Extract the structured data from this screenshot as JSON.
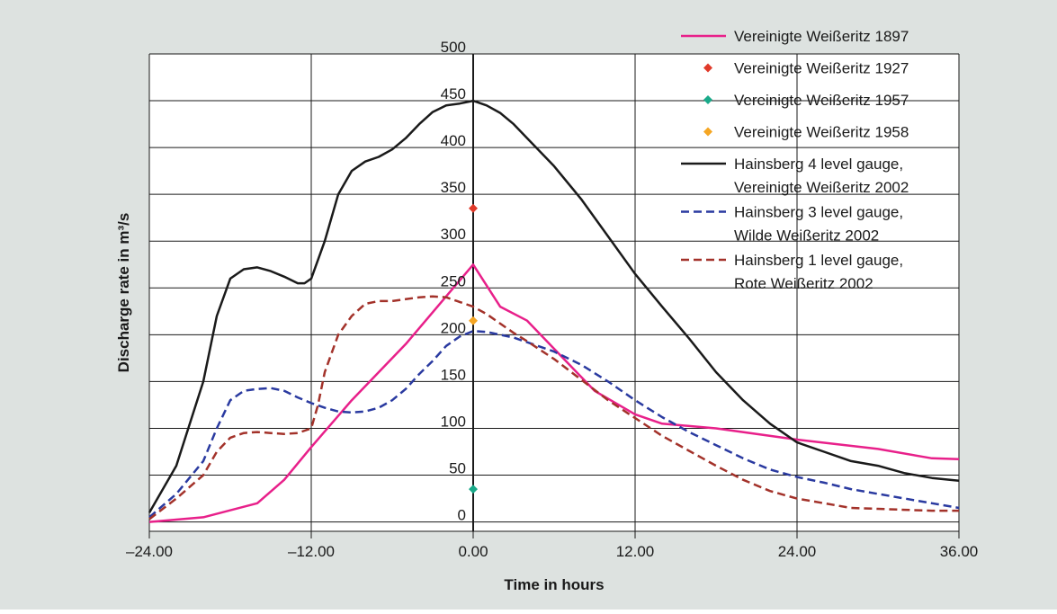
{
  "colors": {
    "background": "#dde2e0",
    "plot_area": "#ffffff",
    "grid": "#1a1a1a"
  },
  "chart_data": {
    "type": "line",
    "title": "",
    "xlabel": "Time in hours",
    "ylabel": "Discharge rate in m³/s",
    "xlim": [
      -24,
      36
    ],
    "ylim": [
      -10,
      500
    ],
    "x_ticks": [
      -24,
      -12,
      0,
      12,
      24,
      36
    ],
    "x_tick_labels": [
      "–24.00",
      "–12.00",
      "0.00",
      "12.00",
      "24.00",
      "36.00"
    ],
    "y_ticks": [
      0,
      50,
      100,
      150,
      200,
      250,
      300,
      350,
      400,
      450,
      500
    ],
    "y_tick_labels": [
      "0",
      "50",
      "100",
      "150",
      "200",
      "250",
      "300",
      "350",
      "400",
      "450",
      "500"
    ],
    "grid": true,
    "legend_position": "top-right",
    "series": [
      {
        "name": "Vereinigte Weißeritz 1897",
        "style": "line",
        "color": "#e8208a",
        "dash": "solid",
        "points": [
          [
            -24,
            0
          ],
          [
            -20,
            5
          ],
          [
            -16,
            20
          ],
          [
            -14,
            45
          ],
          [
            -12,
            80
          ],
          [
            -9,
            130
          ],
          [
            -5,
            190
          ],
          [
            0,
            275
          ],
          [
            2,
            230
          ],
          [
            4,
            215
          ],
          [
            6,
            185
          ],
          [
            9,
            140
          ],
          [
            12,
            115
          ],
          [
            14,
            105
          ],
          [
            18,
            100
          ],
          [
            24,
            88
          ],
          [
            30,
            78
          ],
          [
            34,
            68
          ],
          [
            36,
            67
          ]
        ]
      },
      {
        "name": "Vereinigte Weißeritz 1927",
        "style": "point",
        "color": "#e03a2a",
        "points": [
          [
            0,
            335
          ]
        ]
      },
      {
        "name": "Vereinigte Weißeritz 1957",
        "style": "point",
        "color": "#1aaa8a",
        "points": [
          [
            0,
            35
          ]
        ]
      },
      {
        "name": "Vereinigte Weißeritz 1958",
        "style": "point",
        "color": "#f5a623",
        "points": [
          [
            0,
            215
          ]
        ]
      },
      {
        "name": "Hainsberg 4 level gauge,\nVereinigte Weißeritz 2002",
        "style": "line",
        "color": "#1a1a1a",
        "dash": "solid",
        "points": [
          [
            -24,
            10
          ],
          [
            -22,
            60
          ],
          [
            -20,
            150
          ],
          [
            -19,
            220
          ],
          [
            -18,
            260
          ],
          [
            -17,
            270
          ],
          [
            -16,
            272
          ],
          [
            -15,
            268
          ],
          [
            -14,
            262
          ],
          [
            -13,
            255
          ],
          [
            -12.5,
            255
          ],
          [
            -12,
            260
          ],
          [
            -11,
            300
          ],
          [
            -10,
            350
          ],
          [
            -9,
            375
          ],
          [
            -8,
            385
          ],
          [
            -7,
            390
          ],
          [
            -6,
            398
          ],
          [
            -5,
            410
          ],
          [
            -4,
            425
          ],
          [
            -3,
            438
          ],
          [
            -2,
            445
          ],
          [
            -1,
            447
          ],
          [
            0,
            450
          ],
          [
            1,
            445
          ],
          [
            2,
            437
          ],
          [
            3,
            425
          ],
          [
            4,
            410
          ],
          [
            6,
            380
          ],
          [
            8,
            345
          ],
          [
            10,
            305
          ],
          [
            12,
            265
          ],
          [
            14,
            230
          ],
          [
            16,
            196
          ],
          [
            18,
            160
          ],
          [
            20,
            130
          ],
          [
            22,
            105
          ],
          [
            24,
            85
          ],
          [
            26,
            75
          ],
          [
            28,
            65
          ],
          [
            30,
            60
          ],
          [
            32,
            52
          ],
          [
            34,
            47
          ],
          [
            36,
            44
          ]
        ]
      },
      {
        "name": "Hainsberg 3 level gauge,\nWilde Weißeritz 2002",
        "style": "line",
        "color": "#2a3aa0",
        "dash": "dashed",
        "points": [
          [
            -24,
            5
          ],
          [
            -22,
            30
          ],
          [
            -20,
            65
          ],
          [
            -19,
            100
          ],
          [
            -18,
            130
          ],
          [
            -17,
            140
          ],
          [
            -16,
            142
          ],
          [
            -15,
            143
          ],
          [
            -14,
            140
          ],
          [
            -13,
            133
          ],
          [
            -12,
            127
          ],
          [
            -11,
            122
          ],
          [
            -10,
            118
          ],
          [
            -9,
            117
          ],
          [
            -8,
            118
          ],
          [
            -7,
            122
          ],
          [
            -6,
            130
          ],
          [
            -5,
            142
          ],
          [
            -4,
            158
          ],
          [
            -3,
            172
          ],
          [
            -2,
            188
          ],
          [
            -1,
            198
          ],
          [
            0,
            204
          ],
          [
            1,
            203
          ],
          [
            2,
            200
          ],
          [
            3,
            197
          ],
          [
            4,
            192
          ],
          [
            6,
            182
          ],
          [
            8,
            168
          ],
          [
            10,
            150
          ],
          [
            12,
            130
          ],
          [
            14,
            112
          ],
          [
            16,
            96
          ],
          [
            18,
            82
          ],
          [
            20,
            68
          ],
          [
            22,
            56
          ],
          [
            24,
            48
          ],
          [
            26,
            42
          ],
          [
            28,
            35
          ],
          [
            30,
            30
          ],
          [
            32,
            25
          ],
          [
            34,
            20
          ],
          [
            36,
            15
          ]
        ]
      },
      {
        "name": "Hainsberg 1 level gauge,\nRote Weißeritz 2002",
        "style": "line",
        "color": "#a3322a",
        "dash": "dashed",
        "points": [
          [
            -24,
            3
          ],
          [
            -22,
            25
          ],
          [
            -20,
            50
          ],
          [
            -19,
            75
          ],
          [
            -18,
            90
          ],
          [
            -17,
            95
          ],
          [
            -16,
            96
          ],
          [
            -15,
            95
          ],
          [
            -14,
            94
          ],
          [
            -13,
            95
          ],
          [
            -12,
            100
          ],
          [
            -11.5,
            125
          ],
          [
            -11,
            160
          ],
          [
            -10,
            200
          ],
          [
            -9,
            220
          ],
          [
            -8,
            233
          ],
          [
            -7,
            236
          ],
          [
            -6,
            236
          ],
          [
            -5,
            238
          ],
          [
            -4,
            240
          ],
          [
            -3,
            241
          ],
          [
            -2,
            240
          ],
          [
            -1,
            235
          ],
          [
            0,
            230
          ],
          [
            1,
            222
          ],
          [
            2,
            212
          ],
          [
            3,
            202
          ],
          [
            4,
            193
          ],
          [
            6,
            174
          ],
          [
            8,
            152
          ],
          [
            10,
            130
          ],
          [
            12,
            111
          ],
          [
            14,
            92
          ],
          [
            16,
            76
          ],
          [
            18,
            60
          ],
          [
            20,
            45
          ],
          [
            22,
            33
          ],
          [
            24,
            25
          ],
          [
            26,
            20
          ],
          [
            28,
            15
          ],
          [
            30,
            14
          ],
          [
            32,
            13
          ],
          [
            34,
            12
          ],
          [
            36,
            12
          ]
        ]
      }
    ]
  }
}
